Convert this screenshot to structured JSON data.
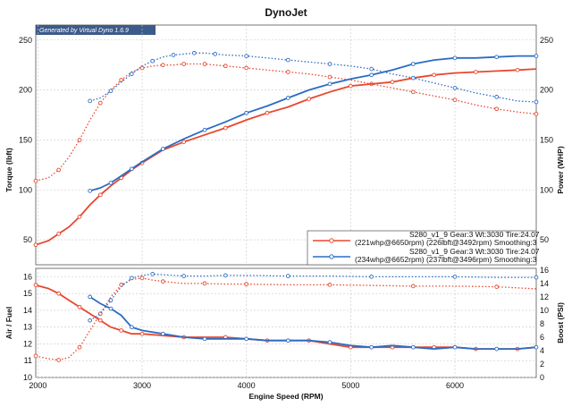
{
  "chart_data": [
    {
      "type": "line",
      "title": "DynoJet",
      "credit": "Generated by Virtual Dyno 1.6.9",
      "xlabel": "Engine Speed (RPM)",
      "ylabel": "Torque (lbft)",
      "y2label": "Power (WHP)",
      "xlim": [
        1980,
        6780
      ],
      "xticks": [
        2000,
        3000,
        4000,
        5000,
        6000
      ],
      "ylim": [
        25,
        265
      ],
      "yticks": [
        50,
        100,
        150,
        200,
        250
      ],
      "y2lim": [
        25,
        265
      ],
      "y2ticks": [
        50,
        100,
        150,
        200,
        250
      ],
      "grid": true,
      "legend": "bottom-right",
      "series": [
        {
          "name": "S280_v1_9 Gear:3 Wt:3030 Tire:24.07",
          "name2": "(221whp@6650rpm) (226lbft@3492rpm) Smoothing:3",
          "color": "#e8472e",
          "torque": {
            "x": [
              1980,
              2100,
              2200,
              2300,
              2400,
              2500,
              2600,
              2700,
              2800,
              2900,
              3000,
              3100,
              3200,
              3300,
              3400,
              3500,
              3600,
              3700,
              3800,
              3900,
              4000,
              4200,
              4400,
              4600,
              4800,
              5000,
              5200,
              5400,
              5600,
              5800,
              6000,
              6200,
              6400,
              6600,
              6780
            ],
            "y": [
              109,
              112,
              120,
              133,
              150,
              170,
              187,
              200,
              210,
              218,
              222,
              224,
              225,
              225,
              226,
              226,
              226,
              225,
              224,
              223,
              222,
              220,
              218,
              216,
              213,
              210,
              206,
              202,
              198,
              194,
              190,
              185,
              181,
              178,
              176
            ]
          },
          "power": {
            "x": [
              1980,
              2100,
              2200,
              2300,
              2400,
              2500,
              2600,
              2700,
              2800,
              2900,
              3000,
              3200,
              3400,
              3600,
              3800,
              4000,
              4200,
              4400,
              4600,
              4800,
              5000,
              5200,
              5400,
              5600,
              5800,
              6000,
              6200,
              6400,
              6600,
              6780
            ],
            "y": [
              45,
              49,
              56,
              63,
              73,
              85,
              95,
              104,
              112,
              120,
              127,
              140,
              148,
              155,
              162,
              170,
              177,
              183,
              191,
              198,
              204,
              206,
              208,
              212,
              215,
              217,
              218,
              219,
              220,
              221
            ]
          }
        },
        {
          "name": "S280_v1_9 Gear:3 Wt:3030 Tire:24.07",
          "name2": "(234whp@6652rpm) (237lbft@3496rpm) Smoothing:3",
          "color": "#2b6cc4",
          "torque": {
            "x": [
              2500,
              2600,
              2700,
              2800,
              2900,
              3000,
              3100,
              3200,
              3300,
              3400,
              3500,
              3600,
              3700,
              3800,
              4000,
              4200,
              4400,
              4600,
              4800,
              5000,
              5200,
              5400,
              5600,
              5800,
              6000,
              6200,
              6400,
              6600,
              6780
            ],
            "y": [
              189,
              192,
              199,
              208,
              216,
              224,
              229,
              233,
              235,
              236,
              237,
              237,
              236,
              235,
              234,
              232,
              230,
              228,
              226,
              224,
              221,
              216,
              212,
              207,
              202,
              197,
              193,
              189,
              188
            ]
          },
          "power": {
            "x": [
              2500,
              2600,
              2700,
              2800,
              2900,
              3000,
              3200,
              3400,
              3600,
              3800,
              4000,
              4200,
              4400,
              4600,
              4800,
              5000,
              5200,
              5400,
              5600,
              5800,
              6000,
              6200,
              6400,
              6600,
              6780
            ],
            "y": [
              99,
              102,
              107,
              114,
              121,
              128,
              141,
              151,
              160,
              168,
              177,
              184,
              192,
              200,
              206,
              211,
              215,
              220,
              226,
              230,
              232,
              232,
              233,
              234,
              234
            ]
          }
        }
      ]
    },
    {
      "type": "line",
      "xlabel": "Engine Speed (RPM)",
      "ylabel": "Air / Fuel",
      "y2label": "Boost (PSI)",
      "xlim": [
        1980,
        6780
      ],
      "xticks": [
        2000,
        3000,
        4000,
        5000,
        6000
      ],
      "ylim": [
        10,
        16.5
      ],
      "yticks": [
        10,
        11,
        12,
        13,
        14,
        15,
        16
      ],
      "y2lim": [
        0,
        16.25
      ],
      "y2ticks": [
        0,
        2,
        4,
        6,
        8,
        10,
        12,
        14,
        16
      ],
      "grid": true,
      "series": [
        {
          "color": "#e8472e",
          "airfuel": {
            "x": [
              1980,
              2100,
              2200,
              2300,
              2400,
              2500,
              2600,
              2700,
              2800,
              2900,
              3000,
              3200,
              3400,
              3600,
              3800,
              4000,
              4200,
              4400,
              4600,
              4800,
              5000,
              5200,
              5400,
              5600,
              5800,
              6000,
              6200,
              6400,
              6600,
              6780
            ],
            "y": [
              15.5,
              15.3,
              15.0,
              14.6,
              14.2,
              13.8,
              13.4,
              13.0,
              12.8,
              12.6,
              12.6,
              12.5,
              12.4,
              12.4,
              12.4,
              12.3,
              12.2,
              12.2,
              12.2,
              12.0,
              11.8,
              11.8,
              11.8,
              11.8,
              11.8,
              11.8,
              11.7,
              11.7,
              11.7,
              11.8
            ]
          },
          "boost": {
            "x": [
              1980,
              2100,
              2200,
              2300,
              2400,
              2500,
              2600,
              2700,
              2800,
              2900,
              3000,
              3100,
              3200,
              3400,
              3600,
              3800,
              4000,
              4400,
              4800,
              5200,
              5600,
              6000,
              6400,
              6780
            ],
            "y": [
              3.2,
              2.8,
              2.6,
              3.0,
              4.5,
              7.0,
              9.5,
              12.0,
              13.8,
              14.6,
              14.8,
              14.5,
              14.3,
              14.0,
              14.0,
              13.9,
              13.9,
              13.8,
              13.8,
              13.7,
              13.6,
              13.6,
              13.5,
              13.2
            ]
          }
        },
        {
          "color": "#2b6cc4",
          "airfuel": {
            "x": [
              2500,
              2600,
              2700,
              2800,
              2900,
              3000,
              3200,
              3400,
              3600,
              3800,
              4000,
              4200,
              4400,
              4600,
              4800,
              5000,
              5200,
              5400,
              5600,
              5800,
              6000,
              6200,
              6400,
              6600,
              6780
            ],
            "y": [
              14.8,
              14.4,
              14.1,
              13.7,
              13.0,
              12.8,
              12.6,
              12.4,
              12.3,
              12.3,
              12.3,
              12.2,
              12.2,
              12.2,
              12.1,
              11.9,
              11.8,
              11.9,
              11.8,
              11.7,
              11.8,
              11.7,
              11.7,
              11.7,
              11.8
            ]
          },
          "boost": {
            "x": [
              2500,
              2600,
              2700,
              2800,
              2900,
              3000,
              3100,
              3200,
              3400,
              3600,
              3800,
              4000,
              4400,
              4800,
              5200,
              5600,
              6000,
              6400,
              6780
            ],
            "y": [
              8.5,
              9.5,
              11.5,
              13.5,
              14.8,
              15.2,
              15.4,
              15.3,
              15.1,
              15.1,
              15.2,
              15.2,
              15.1,
              15.1,
              15.0,
              15.0,
              15.0,
              14.9,
              14.9
            ]
          }
        }
      ]
    }
  ]
}
